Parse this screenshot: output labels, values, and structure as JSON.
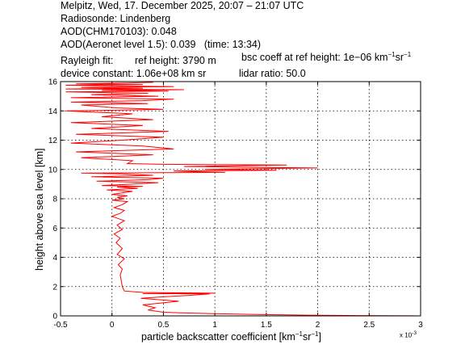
{
  "header": {
    "line1": "Melpitz, Wed, 17. December 2025, 20:07 – 21:07 UTC",
    "line2": "Radiosonde: Lindenberg",
    "line3": "AOD(CHM170103): 0.048",
    "line4_a": "AOD(Aeronet level 1.5): 0.039",
    "line4_b": "(time: 13:34)",
    "rayleigh_label": "Rayleigh fit:",
    "ref_height": "ref height: 3790 m",
    "bsc_coeff_pre": "bsc coeff at ref height: 1e−06 km",
    "device_constant": "device constant: 1.06e+08 km sr",
    "lidar_ratio": "lidar ratio: 50.0"
  },
  "chart_data": {
    "type": "line",
    "xlabel_pre": "particle backscatter coefficient [km",
    "xlabel_mid": "sr",
    "xlabel_post": "]",
    "ylabel": "height above sea level [km]",
    "x_exponent_label": "x 10",
    "x_exponent_power": "-3",
    "xlim": [
      -0.5,
      3
    ],
    "ylim": [
      0,
      16
    ],
    "x_ticks": [
      "-0.5",
      "0",
      "0.5",
      "1",
      "1.5",
      "2",
      "2.5",
      "3"
    ],
    "y_ticks": [
      "0",
      "2",
      "4",
      "6",
      "8",
      "10",
      "12",
      "14",
      "16"
    ],
    "grid": true,
    "line_color": "#ff0000",
    "series": [
      {
        "x": [
          3.0,
          2.4,
          1.9,
          1.4,
          1.0,
          0.7,
          0.5,
          0.35,
          0.42,
          0.3,
          0.65,
          0.28,
          0.5,
          0.75,
          0.95,
          0.3,
          1.0,
          0.6,
          0.3,
          0.12,
          0.1,
          0.09,
          0.08,
          0.1,
          0.06,
          0.12,
          0.05,
          0.1,
          0.04,
          0.08,
          0.02,
          0.1,
          0.05,
          0.12,
          0.0,
          0.08,
          0.12,
          0.02,
          0.1,
          0.15,
          0.0,
          0.12,
          0.05,
          0.15,
          0.0,
          0.1,
          0.2,
          -0.05,
          0.25,
          0.05,
          0.3,
          -0.1,
          0.2,
          0.45,
          -0.15,
          0.35,
          0.5,
          -0.2,
          0.4,
          0.1,
          -0.3,
          1.1,
          0.8,
          0.6,
          1.6,
          0.9,
          1.4,
          2.0,
          1.3,
          0.7,
          1.7,
          0.5,
          0.15,
          0.2,
          -0.3,
          0.4,
          -0.35,
          0.6,
          0.3,
          -0.4,
          0.1,
          0.5,
          -0.35,
          0.55,
          -0.2,
          0.3,
          -0.4,
          0.4,
          -0.1,
          0.2,
          -0.45,
          0.5,
          0.05,
          -0.3,
          0.35,
          -0.4,
          0.3,
          0.6,
          -0.4,
          0.45,
          -0.2,
          0.35,
          -0.45,
          0.55,
          -0.1,
          0.7,
          -0.45,
          0.3,
          -0.3,
          0.6,
          0.0,
          -0.45,
          0.3,
          -0.35,
          0.15,
          0.4
        ],
        "y": [
          0.0,
          0.02,
          0.05,
          0.1,
          0.15,
          0.2,
          0.25,
          0.4,
          0.55,
          0.75,
          1.0,
          1.2,
          1.3,
          1.4,
          1.5,
          1.52,
          1.55,
          1.58,
          1.6,
          1.7,
          2.0,
          2.4,
          2.8,
          3.2,
          3.5,
          3.9,
          4.2,
          4.6,
          5.0,
          5.3,
          5.6,
          5.9,
          6.2,
          6.5,
          6.8,
          7.0,
          7.2,
          7.4,
          7.6,
          7.8,
          7.9,
          8.0,
          8.1,
          8.2,
          8.3,
          8.4,
          8.5,
          8.6,
          8.7,
          8.8,
          8.85,
          8.9,
          9.0,
          9.1,
          9.2,
          9.3,
          9.4,
          9.5,
          9.6,
          9.7,
          9.75,
          9.8,
          9.85,
          9.9,
          9.95,
          10.0,
          10.05,
          10.1,
          10.15,
          10.2,
          10.3,
          10.35,
          10.4,
          10.6,
          10.8,
          11.0,
          11.2,
          11.4,
          11.6,
          11.8,
          12.0,
          12.2,
          12.4,
          12.6,
          12.8,
          13.0,
          13.2,
          13.4,
          13.6,
          13.8,
          14.0,
          14.1,
          14.2,
          14.4,
          14.5,
          14.6,
          14.7,
          14.8,
          14.9,
          15.0,
          15.1,
          15.2,
          15.3,
          15.35,
          15.4,
          15.45,
          15.5,
          15.55,
          15.6,
          15.65,
          15.7,
          15.75,
          15.8,
          15.85,
          15.9,
          15.95
        ]
      }
    ]
  }
}
